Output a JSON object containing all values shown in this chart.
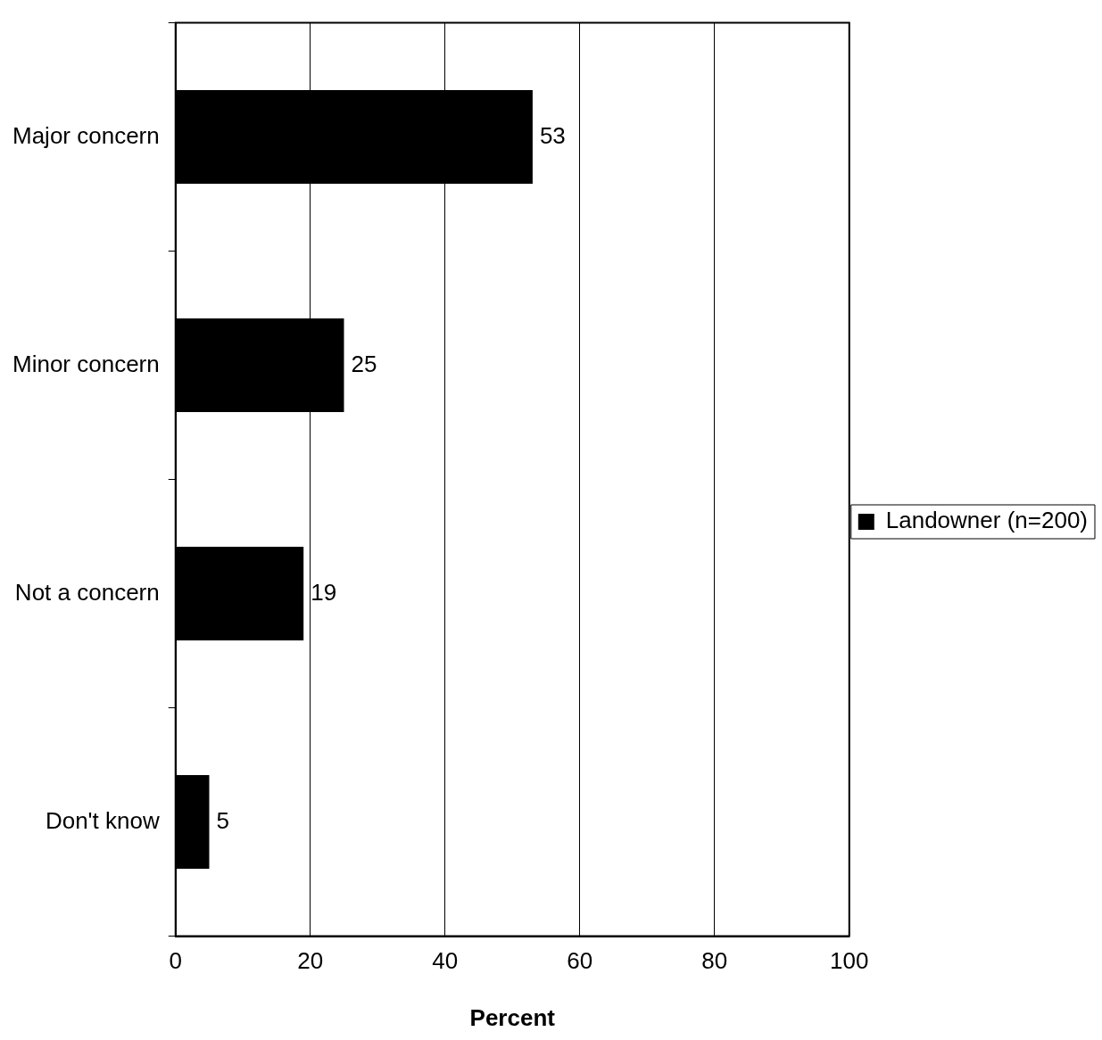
{
  "chart_data": {
    "type": "bar",
    "orientation": "horizontal",
    "xlabel": "Percent",
    "categories": [
      "Major concern",
      "Minor concern",
      "Not a concern",
      "Don't know"
    ],
    "series": [
      {
        "name": "Landowner (n=200)",
        "color": "#000000",
        "values": [
          53,
          25,
          19,
          5
        ]
      }
    ],
    "xlim": [
      0,
      100
    ],
    "xticks": [
      0,
      20,
      40,
      60,
      80,
      100
    ],
    "grid": "x",
    "legend": "right",
    "data_labels": true
  }
}
